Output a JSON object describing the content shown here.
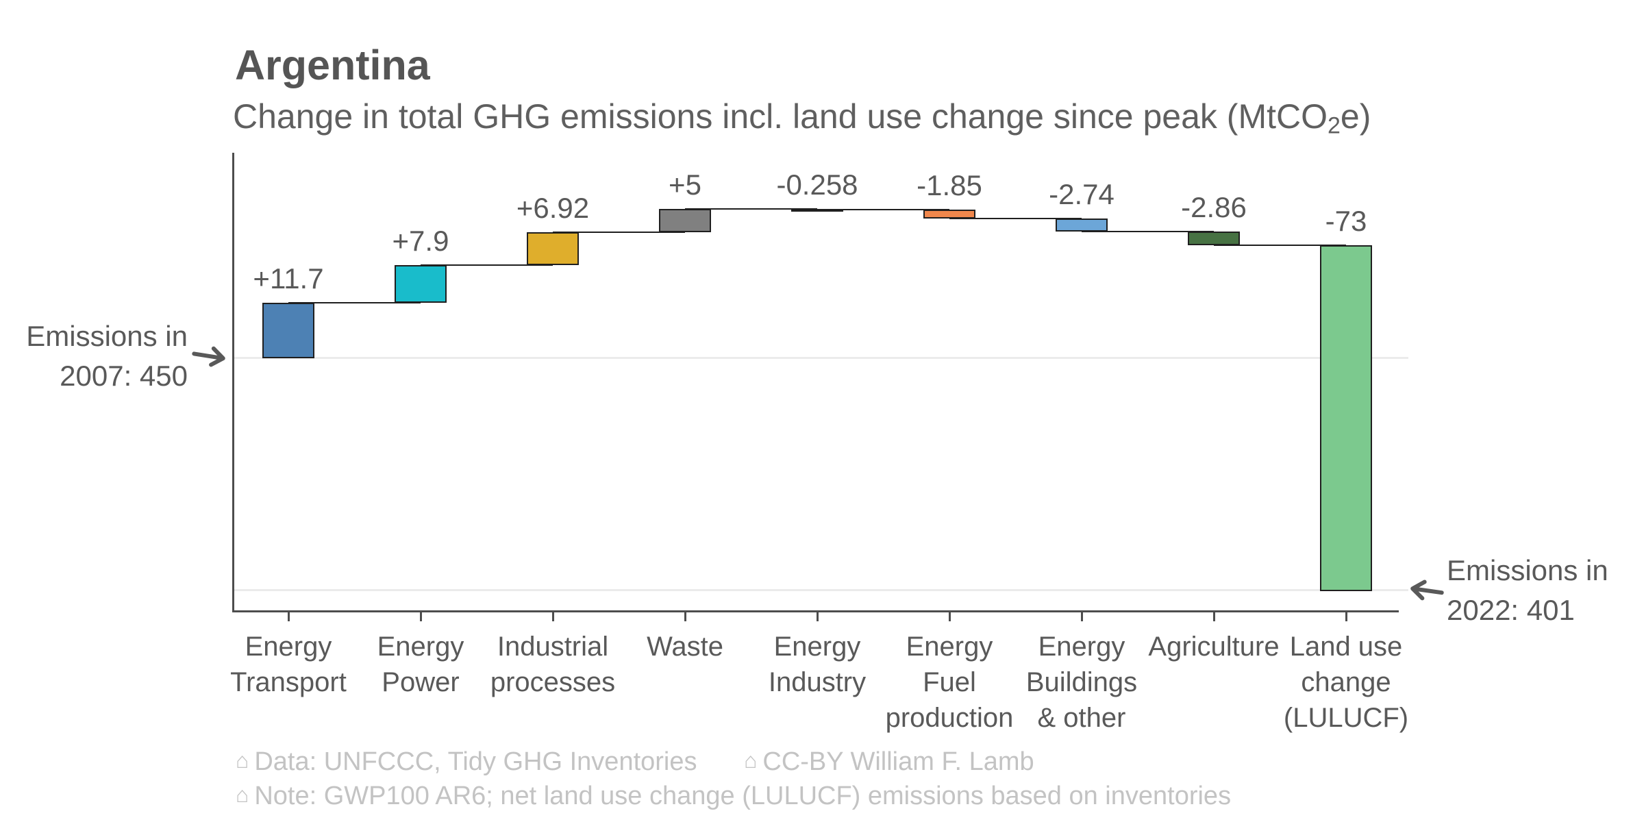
{
  "header": {
    "title": "Argentina",
    "subtitle_pre": "Change in total GHG emissions incl. land use change since peak (MtCO",
    "subtitle_sub": "2",
    "subtitle_post": "e)"
  },
  "chart_data": {
    "type": "bar",
    "subtype": "waterfall",
    "title": "Argentina",
    "subtitle": "Change in total GHG emissions incl. land use change since peak (MtCO2e)",
    "unit": "MtCO2e",
    "start": {
      "label": "Emissions in 2007",
      "value": 450
    },
    "end": {
      "label": "Emissions in 2022",
      "value": 401
    },
    "categories": [
      [
        "Energy",
        "Transport"
      ],
      [
        "Energy",
        "Power"
      ],
      [
        "Industrial",
        "processes"
      ],
      [
        "Waste"
      ],
      [
        "Energy",
        "Industry"
      ],
      [
        "Energy",
        "Fuel",
        "production"
      ],
      [
        "Energy",
        "Buildings",
        "& other"
      ],
      [
        "Agriculture"
      ],
      [
        "Land use",
        "change",
        "(LULUCF)"
      ]
    ],
    "values": [
      11.7,
      7.9,
      6.92,
      5,
      -0.258,
      -1.85,
      -2.74,
      -2.86,
      -73
    ],
    "value_labels": [
      "+11.7",
      "+7.9",
      "+6.92",
      "+5",
      "-0.258",
      "-1.85",
      "-2.74",
      "-2.86",
      "-73"
    ],
    "cumulative": [
      461.7,
      469.6,
      476.52,
      481.52,
      481.26,
      479.41,
      476.67,
      473.81,
      400.81
    ],
    "bar_colors": [
      "#4d81b4",
      "#19bccb",
      "#dfae2c",
      "#808080",
      "#2b2b2b",
      "#f0874c",
      "#6ca6d8",
      "#477243",
      "#7cc98e"
    ],
    "gridlines": [
      450,
      401
    ],
    "ylim": [
      396.7,
      493.3
    ],
    "grid": "horizontal-only",
    "legend": "none"
  },
  "annotations": {
    "left": {
      "line1": "Emissions in",
      "line2": "2007: 450"
    },
    "right": {
      "line1": "Emissions in",
      "line2": "2022: 401"
    }
  },
  "footer": {
    "icon": "⌂",
    "data_credit": "Data: UNFCCC, Tidy GHG Inventories",
    "license": "CC-BY William F. Lamb",
    "note": "Note: GWP100 AR6; net land use change (LULUCF) emissions based on inventories"
  }
}
